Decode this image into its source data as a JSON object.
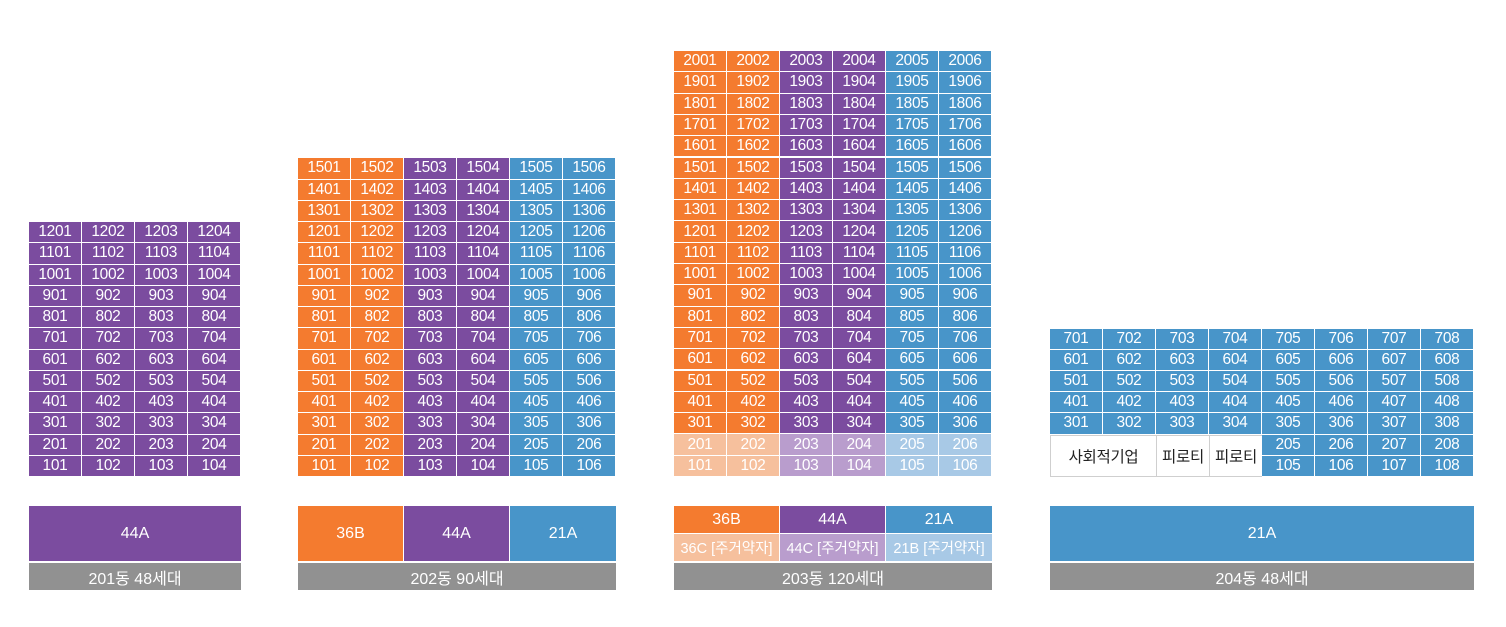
{
  "colors": {
    "orange": "#f47b2f",
    "purple": "#7b4c9f",
    "blue": "#4895c9",
    "light_orange": "#f6c09d",
    "light_purple": "#b99dcd",
    "light_blue": "#a8c9e6",
    "caption_gray": "#919191"
  },
  "buildings": [
    {
      "caption": "201동 48세대",
      "legend_single": "44A",
      "floors": [
        [
          "1201",
          "1202",
          "1203",
          "1204"
        ],
        [
          "1101",
          "1102",
          "1103",
          "1104"
        ],
        [
          "1001",
          "1002",
          "1003",
          "1004"
        ],
        [
          "901",
          "902",
          "903",
          "904"
        ],
        [
          "801",
          "802",
          "803",
          "804"
        ],
        [
          "701",
          "702",
          "703",
          "704"
        ],
        [
          "601",
          "602",
          "603",
          "604"
        ],
        [
          "501",
          "502",
          "503",
          "504"
        ],
        [
          "401",
          "402",
          "403",
          "404"
        ],
        [
          "301",
          "302",
          "303",
          "304"
        ],
        [
          "201",
          "202",
          "203",
          "204"
        ],
        [
          "101",
          "102",
          "103",
          "104"
        ]
      ]
    },
    {
      "caption": "202동 90세대",
      "legend_types": [
        "36B",
        "44A",
        "21A"
      ],
      "floors": [
        [
          "1501",
          "1502",
          "1503",
          "1504",
          "1505",
          "1506"
        ],
        [
          "1401",
          "1402",
          "1403",
          "1404",
          "1405",
          "1406"
        ],
        [
          "1301",
          "1302",
          "1303",
          "1304",
          "1305",
          "1306"
        ],
        [
          "1201",
          "1202",
          "1203",
          "1204",
          "1205",
          "1206"
        ],
        [
          "1101",
          "1102",
          "1103",
          "1104",
          "1105",
          "1106"
        ],
        [
          "1001",
          "1002",
          "1003",
          "1004",
          "1005",
          "1006"
        ],
        [
          "901",
          "902",
          "903",
          "904",
          "905",
          "906"
        ],
        [
          "801",
          "802",
          "803",
          "804",
          "805",
          "806"
        ],
        [
          "701",
          "702",
          "703",
          "704",
          "705",
          "706"
        ],
        [
          "601",
          "602",
          "603",
          "604",
          "605",
          "606"
        ],
        [
          "501",
          "502",
          "503",
          "504",
          "505",
          "506"
        ],
        [
          "401",
          "402",
          "403",
          "404",
          "405",
          "406"
        ],
        [
          "301",
          "302",
          "303",
          "304",
          "305",
          "306"
        ],
        [
          "201",
          "202",
          "203",
          "204",
          "205",
          "206"
        ],
        [
          "101",
          "102",
          "103",
          "104",
          "105",
          "106"
        ]
      ]
    },
    {
      "caption": "203동 120세대",
      "legend_types": [
        "36B",
        "44A",
        "21A"
      ],
      "legend_elderly": [
        "36C [주거약자]",
        "44C [주거약자]",
        "21B [주거약자]"
      ],
      "floors": [
        [
          "2001",
          "2002",
          "2003",
          "2004",
          "2005",
          "2006"
        ],
        [
          "1901",
          "1902",
          "1903",
          "1904",
          "1905",
          "1906"
        ],
        [
          "1801",
          "1802",
          "1803",
          "1804",
          "1805",
          "1806"
        ],
        [
          "1701",
          "1702",
          "1703",
          "1704",
          "1705",
          "1706"
        ],
        [
          "1601",
          "1602",
          "1603",
          "1604",
          "1605",
          "1606"
        ],
        [
          "1501",
          "1502",
          "1503",
          "1504",
          "1505",
          "1506"
        ],
        [
          "1401",
          "1402",
          "1403",
          "1404",
          "1405",
          "1406"
        ],
        [
          "1301",
          "1302",
          "1303",
          "1304",
          "1305",
          "1306"
        ],
        [
          "1201",
          "1202",
          "1203",
          "1204",
          "1205",
          "1206"
        ],
        [
          "1101",
          "1102",
          "1103",
          "1104",
          "1105",
          "1106"
        ],
        [
          "1001",
          "1002",
          "1003",
          "1004",
          "1005",
          "1006"
        ],
        [
          "901",
          "902",
          "903",
          "904",
          "905",
          "906"
        ],
        [
          "801",
          "802",
          "803",
          "804",
          "805",
          "806"
        ],
        [
          "701",
          "702",
          "703",
          "704",
          "705",
          "706"
        ],
        [
          "601",
          "602",
          "603",
          "604",
          "605",
          "606"
        ],
        [
          "501",
          "502",
          "503",
          "504",
          "505",
          "506"
        ],
        [
          "401",
          "402",
          "403",
          "404",
          "405",
          "406"
        ],
        [
          "301",
          "302",
          "303",
          "304",
          "305",
          "306"
        ],
        [
          "201",
          "202",
          "203",
          "204",
          "205",
          "206"
        ],
        [
          "101",
          "102",
          "103",
          "104",
          "105",
          "106"
        ]
      ]
    },
    {
      "caption": "204동 48세대",
      "legend_single": "21A",
      "floors": [
        [
          "701",
          "702",
          "703",
          "704",
          "705",
          "706",
          "707",
          "708"
        ],
        [
          "601",
          "602",
          "603",
          "604",
          "605",
          "606",
          "607",
          "608"
        ],
        [
          "501",
          "502",
          "503",
          "504",
          "505",
          "506",
          "507",
          "508"
        ],
        [
          "401",
          "402",
          "403",
          "404",
          "405",
          "406",
          "407",
          "408"
        ],
        [
          "301",
          "302",
          "303",
          "304",
          "305",
          "306",
          "307",
          "308"
        ],
        [
          "205",
          "206",
          "207",
          "208"
        ],
        [
          "105",
          "106",
          "107",
          "108"
        ]
      ],
      "ground_labels": [
        "사회적기업",
        "피로티",
        "피로티"
      ]
    }
  ]
}
